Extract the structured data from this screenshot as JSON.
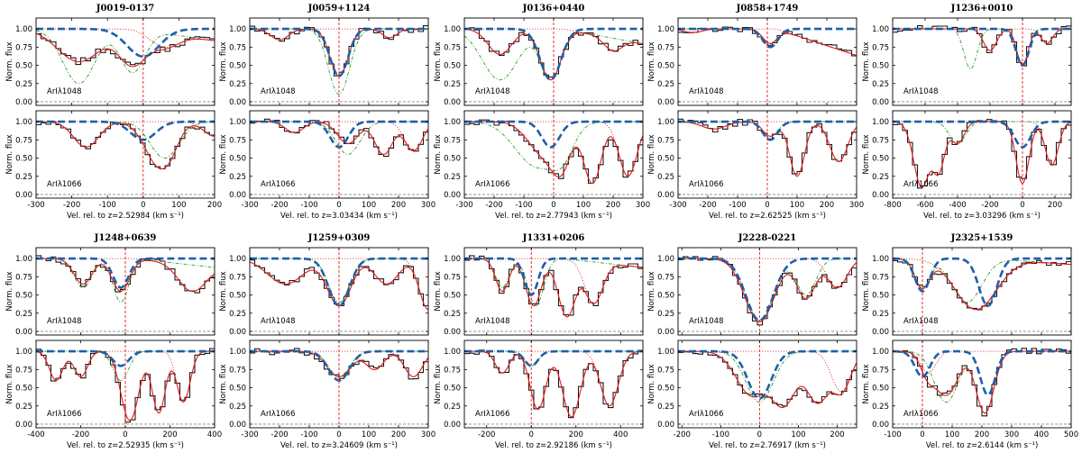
{
  "figure": {
    "ylabel": "Norm. flux",
    "units": "(km s⁻¹)",
    "xlabel_prefix": "Vel. rel. to z=",
    "ions": [
      "ArIλ1048",
      "ArIλ1066"
    ],
    "colors": {
      "data": "#1a1a1a",
      "model": "#e41a1c",
      "blue": "#1f5fa8",
      "green": "#2ca02c",
      "dotted": "#e41a1c",
      "zero": "#888888"
    }
  },
  "chart_data": [
    {
      "type": "line",
      "title": "J0019-0137",
      "z": "2.52984",
      "xlim": [
        -300,
        200
      ],
      "xticks": [
        -300,
        -200,
        -100,
        0,
        100,
        200
      ],
      "ylim": [
        -0.05,
        1.15
      ],
      "yticks": [
        "0.00",
        "0.25",
        "0.50",
        "0.75",
        "1.00"
      ],
      "panels": [
        {
          "ion": "ArIλ1048",
          "blue": [
            [
              0,
              0.38,
              45
            ]
          ],
          "green": [
            [
              -180,
              0.75,
              45
            ],
            [
              -30,
              0.6,
              35
            ]
          ],
          "model": [
            [
              -180,
              0.45,
              60
            ],
            [
              -30,
              0.5,
              40
            ],
            [
              60,
              0.2,
              40
            ]
          ],
          "slope": -0.4
        },
        {
          "ion": "ArIλ1066",
          "blue": [
            [
              0,
              0.25,
              35
            ]
          ],
          "green": [
            [
              -160,
              0.35,
              35
            ],
            [
              60,
              0.5,
              40
            ]
          ],
          "model": [
            [
              -160,
              0.35,
              35
            ],
            [
              40,
              0.45,
              40
            ],
            [
              60,
              0.4,
              30
            ],
            [
              200,
              0.2,
              30
            ]
          ],
          "slope": 0
        }
      ]
    },
    {
      "type": "line",
      "title": "J0059+1124",
      "z": "3.03434",
      "xlim": [
        -300,
        300
      ],
      "xticks": [
        -300,
        -200,
        -100,
        0,
        100,
        200,
        300
      ],
      "ylim": [
        -0.05,
        1.15
      ],
      "yticks": [
        "0.00",
        "0.25",
        "0.50",
        "0.75",
        "1.00"
      ],
      "panels": [
        {
          "ion": "ArIλ1048",
          "blue": [
            [
              0,
              0.65,
              30
            ]
          ],
          "green": [
            [
              0,
              0.9,
              35
            ]
          ],
          "model": [
            [
              0,
              0.65,
              30
            ],
            [
              -200,
              0.15,
              30
            ],
            [
              170,
              0.12,
              25
            ]
          ],
          "slope": 0
        },
        {
          "ion": "ArIλ1066",
          "blue": [
            [
              0,
              0.35,
              30
            ]
          ],
          "green": [
            [
              30,
              0.45,
              40
            ]
          ],
          "model": [
            [
              30,
              0.3,
              35
            ],
            [
              -150,
              0.15,
              30
            ],
            [
              150,
              0.45,
              30
            ],
            [
              250,
              0.4,
              30
            ]
          ],
          "slope": 0
        }
      ]
    },
    {
      "type": "line",
      "title": "J0136+0440",
      "z": "2.77943",
      "xlim": [
        -300,
        300
      ],
      "xticks": [
        -300,
        -200,
        -100,
        0,
        100,
        200,
        300
      ],
      "ylim": [
        -0.05,
        1.15
      ],
      "yticks": [
        "0.00",
        "0.25",
        "0.50",
        "0.75",
        "1.00"
      ],
      "panels": [
        {
          "ion": "ArIλ1048",
          "blue": [
            [
              -10,
              0.7,
              35
            ]
          ],
          "green": [
            [
              -180,
              0.7,
              60
            ],
            [
              -10,
              0.7,
              35
            ]
          ],
          "model": [
            [
              -180,
              0.35,
              40
            ],
            [
              -10,
              0.7,
              35
            ],
            [
              200,
              0.2,
              30
            ]
          ],
          "slope": -0.5
        },
        {
          "ion": "ArIλ1066",
          "blue": [
            [
              -10,
              0.35,
              30
            ]
          ],
          "green": [
            [
              -60,
              0.6,
              70
            ],
            [
              20,
              0.5,
              40
            ]
          ],
          "model": [
            [
              -40,
              0.4,
              50
            ],
            [
              20,
              0.7,
              35
            ],
            [
              130,
              0.85,
              30
            ],
            [
              250,
              0.75,
              30
            ]
          ],
          "slope": 0
        }
      ]
    },
    {
      "type": "line",
      "title": "J0858+1749",
      "z": "2.62525",
      "xlim": [
        -300,
        300
      ],
      "xticks": [
        -300,
        -200,
        -100,
        0,
        100,
        200,
        300
      ],
      "ylim": [
        -0.05,
        1.15
      ],
      "yticks": [
        "0.00",
        "0.25",
        "0.50",
        "0.75",
        "1.00"
      ],
      "panels": [
        {
          "ion": "ArIλ1048",
          "blue": [
            [
              10,
              0.25,
              25
            ]
          ],
          "green": [
            [
              10,
              0.2,
              25
            ]
          ],
          "model": [
            [
              10,
              0.2,
              25
            ],
            [
              -250,
              0.05,
              30
            ]
          ],
          "slope": -0.9
        },
        {
          "ion": "ArIλ1066",
          "blue": [
            [
              10,
              0.25,
              25
            ]
          ],
          "green": [
            [
              10,
              0.2,
              25
            ]
          ],
          "model": [
            [
              10,
              0.2,
              25
            ],
            [
              100,
              0.75,
              25
            ],
            [
              240,
              0.55,
              30
            ],
            [
              -180,
              0.1,
              40
            ]
          ],
          "slope": 0
        }
      ]
    },
    {
      "type": "line",
      "title": "J1236+0010",
      "z": "3.03296",
      "xlim": [
        -800,
        300
      ],
      "xticks": [
        -800,
        -600,
        -400,
        -200,
        0,
        200
      ],
      "ylim": [
        -0.05,
        1.15
      ],
      "yticks": [
        "0.00",
        "0.25",
        "0.50",
        "0.75",
        "1.00"
      ],
      "panels": [
        {
          "ion": "ArIλ1048",
          "blue": [
            [
              0,
              0.5,
              40
            ]
          ],
          "green": [
            [
              -320,
              0.55,
              40
            ],
            [
              0,
              0.5,
              35
            ]
          ],
          "model": [
            [
              -200,
              0.3,
              40
            ],
            [
              0,
              0.5,
              35
            ],
            [
              150,
              0.2,
              35
            ]
          ],
          "slope": 0
        },
        {
          "ion": "ArIλ1066",
          "blue": [
            [
              0,
              0.35,
              50
            ]
          ],
          "green": [
            [
              -400,
              0.3,
              50
            ]
          ],
          "model": [
            [
              -620,
              0.9,
              50
            ],
            [
              -520,
              0.7,
              40
            ],
            [
              -400,
              0.3,
              40
            ],
            [
              0,
              0.85,
              40
            ],
            [
              180,
              0.6,
              40
            ]
          ],
          "slope": 0
        }
      ]
    },
    {
      "type": "line",
      "title": "J1248+0639",
      "z": "2.52935",
      "xlim": [
        -400,
        400
      ],
      "xticks": [
        -400,
        -200,
        0,
        200,
        400
      ],
      "ylim": [
        -0.05,
        1.15
      ],
      "yticks": [
        "0.00",
        "0.25",
        "0.50",
        "0.75",
        "1.00"
      ],
      "panels": [
        {
          "ion": "ArIλ1048",
          "blue": [
            [
              -20,
              0.4,
              35
            ]
          ],
          "green": [
            [
              -190,
              0.4,
              40
            ],
            [
              -20,
              0.6,
              35
            ]
          ],
          "model": [
            [
              -190,
              0.35,
              40
            ],
            [
              -20,
              0.45,
              40
            ],
            [
              300,
              0.4,
              60
            ]
          ],
          "slope": -0.3
        },
        {
          "ion": "ArIλ1066",
          "blue": [
            [
              -20,
              0.2,
              35
            ]
          ],
          "green": [
            [
              -20,
              0.4,
              35
            ]
          ],
          "model": [
            [
              -310,
              0.4,
              30
            ],
            [
              -200,
              0.35,
              30
            ],
            [
              20,
              0.95,
              40
            ],
            [
              150,
              0.85,
              30
            ],
            [
              260,
              0.7,
              30
            ]
          ],
          "slope": 0
        }
      ]
    },
    {
      "type": "line",
      "title": "J1259+0309",
      "z": "3.24609",
      "xlim": [
        -300,
        300
      ],
      "xticks": [
        -300,
        -200,
        -100,
        0,
        100,
        200,
        300
      ],
      "ylim": [
        -0.05,
        1.15
      ],
      "yticks": [
        "0.00",
        "0.25",
        "0.50",
        "0.75",
        "1.00"
      ],
      "panels": [
        {
          "ion": "ArIλ1048",
          "blue": [
            [
              0,
              0.65,
              35
            ]
          ],
          "green": [
            [
              0,
              0.6,
              35
            ]
          ],
          "model": [
            [
              -180,
              0.35,
              60
            ],
            [
              0,
              0.65,
              40
            ],
            [
              160,
              0.35,
              40
            ],
            [
              300,
              0.7,
              30
            ]
          ],
          "slope": 0
        },
        {
          "ion": "ArIλ1066",
          "blue": [
            [
              0,
              0.4,
              35
            ]
          ],
          "green": [
            [
              0,
              0.35,
              35
            ]
          ],
          "model": [
            [
              0,
              0.35,
              40
            ],
            [
              120,
              0.25,
              30
            ],
            [
              250,
              0.35,
              30
            ]
          ],
          "slope": 0
        }
      ]
    },
    {
      "type": "line",
      "title": "J1331+0206",
      "z": "2.92186",
      "xlim": [
        -300,
        500
      ],
      "xticks": [
        -200,
        0,
        200,
        400
      ],
      "ylim": [
        -0.05,
        1.15
      ],
      "yticks": [
        "0.00",
        "0.25",
        "0.50",
        "0.75",
        "1.00"
      ],
      "panels": [
        {
          "ion": "ArIλ1048",
          "blue": [
            [
              0,
              0.5,
              30
            ]
          ],
          "green": [
            [
              -130,
              0.4,
              30
            ],
            [
              20,
              0.65,
              35
            ]
          ],
          "model": [
            [
              -130,
              0.45,
              30
            ],
            [
              10,
              0.65,
              35
            ],
            [
              160,
              0.8,
              40
            ],
            [
              280,
              0.6,
              40
            ]
          ],
          "slope": -0.3
        },
        {
          "ion": "ArIλ1066",
          "blue": [
            [
              0,
              0.2,
              30
            ]
          ],
          "green": [
            [
              0,
              0.2,
              30
            ]
          ],
          "model": [
            [
              -130,
              0.3,
              30
            ],
            [
              30,
              0.8,
              35
            ],
            [
              180,
              0.9,
              40
            ],
            [
              350,
              0.75,
              40
            ]
          ],
          "slope": 0
        }
      ]
    },
    {
      "type": "line",
      "title": "J2228-0221",
      "z": "2.76917",
      "xlim": [
        -210,
        250
      ],
      "xticks": [
        -200,
        -100,
        0,
        100,
        200
      ],
      "ylim": [
        -0.05,
        1.15
      ],
      "yticks": [
        "0.00",
        "0.25",
        "0.50",
        "0.75",
        "1.00"
      ],
      "panels": [
        {
          "ion": "ArIλ1048",
          "blue": [
            [
              0,
              0.85,
              35
            ]
          ],
          "green": [
            [
              0,
              0.85,
              35
            ],
            [
              120,
              0.5,
              25
            ]
          ],
          "model": [
            [
              0,
              0.87,
              38
            ],
            [
              120,
              0.55,
              25
            ],
            [
              200,
              0.4,
              25
            ]
          ],
          "slope": 0
        },
        {
          "ion": "ArIλ1066",
          "blue": [
            [
              0,
              0.65,
              30
            ]
          ],
          "green": [
            [
              0,
              0.7,
              35
            ]
          ],
          "model": [
            [
              -20,
              0.6,
              40
            ],
            [
              60,
              0.75,
              35
            ],
            [
              150,
              0.7,
              30
            ],
            [
              210,
              0.55,
              25
            ]
          ],
          "slope": 0
        }
      ]
    },
    {
      "type": "line",
      "title": "J2325+1539",
      "z": "2.6144",
      "xlim": [
        -100,
        500
      ],
      "xticks": [
        -100,
        0,
        100,
        200,
        300,
        400,
        500
      ],
      "ylim": [
        -0.05,
        1.15
      ],
      "yticks": [
        "0.00",
        "0.25",
        "0.50",
        "0.75",
        "1.00"
      ],
      "panels": [
        {
          "ion": "ArIλ1048",
          "blue": [
            [
              0,
              0.45,
              25
            ],
            [
              220,
              0.65,
              30
            ]
          ],
          "green": [
            [
              0,
              0.4,
              25
            ],
            [
              150,
              0.6,
              50
            ]
          ],
          "model": [
            [
              0,
              0.4,
              25
            ],
            [
              180,
              0.7,
              70
            ]
          ],
          "slope": -0.2
        },
        {
          "ion": "ArIλ1066",
          "blue": [
            [
              0,
              0.35,
              25
            ],
            [
              220,
              0.6,
              25
            ]
          ],
          "green": [
            [
              80,
              0.7,
              40
            ],
            [
              210,
              0.85,
              30
            ]
          ],
          "model": [
            [
              80,
              0.6,
              40
            ],
            [
              210,
              0.85,
              30
            ],
            [
              20,
              0.3,
              25
            ]
          ],
          "slope": 0
        }
      ]
    }
  ]
}
